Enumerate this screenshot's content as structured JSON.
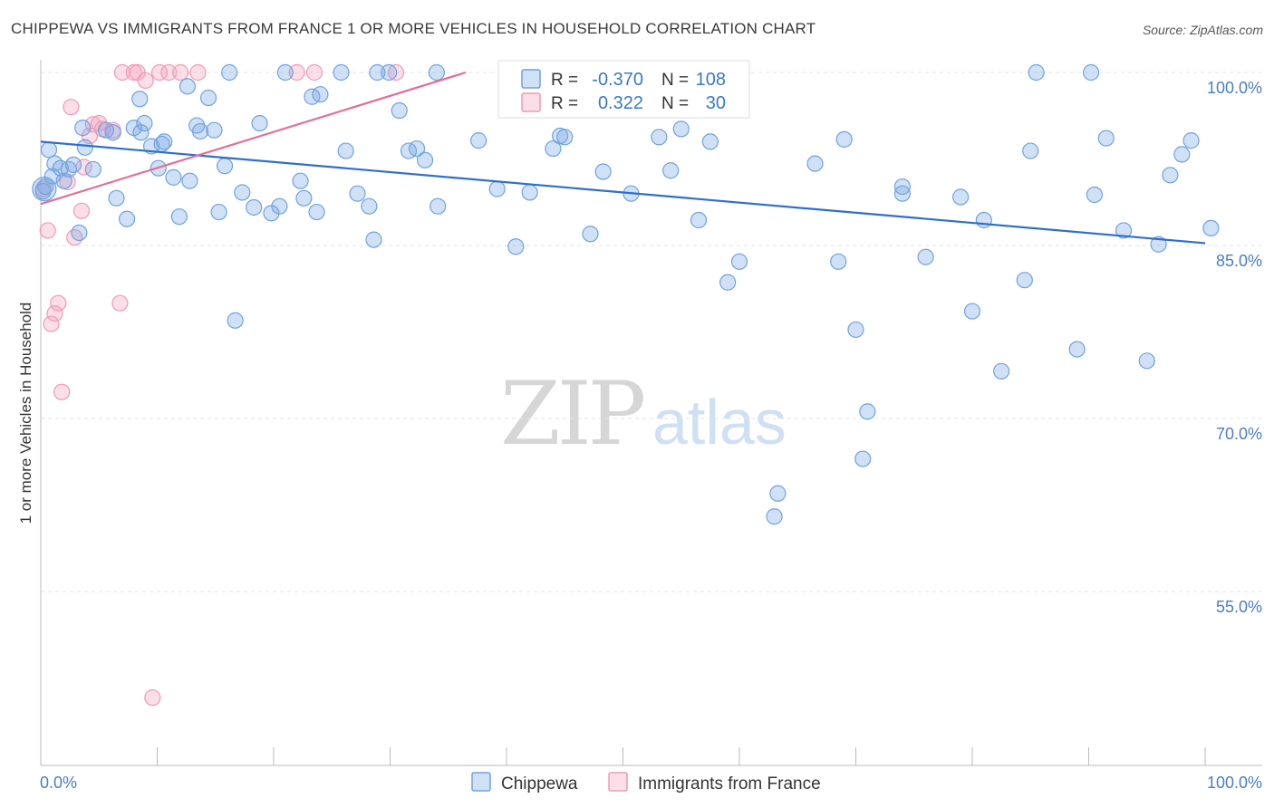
{
  "header": {
    "title": "CHIPPEWA VS IMMIGRANTS FROM FRANCE 1 OR MORE VEHICLES IN HOUSEHOLD CORRELATION CHART",
    "source": "Source: ZipAtlas.com"
  },
  "colors": {
    "blue": "#6fa3e0",
    "blue_fill": "rgba(120,165,225,0.35)",
    "blue_line": "#2f6fcb",
    "pink": "#ef9ab5",
    "pink_fill": "rgba(245,160,190,0.35)",
    "pink_line": "#e0709a",
    "value_text": "#3a78c9"
  },
  "watermark": {
    "zip": "ZIP",
    "atlas": "atlas"
  },
  "legend": {
    "r_label": "R =",
    "n_label": "N =",
    "rows": [
      {
        "series": "Chippewa",
        "r": "-0.370",
        "n": "108"
      },
      {
        "series": "Immigrants from France",
        "r": "0.322",
        "n": "30"
      }
    ]
  },
  "bottom_legend": [
    "Chippewa",
    "Immigrants from France"
  ],
  "chart_data": {
    "type": "scatter",
    "title": "CHIPPEWA VS IMMIGRANTS FROM FRANCE 1 OR MORE VEHICLES IN HOUSEHOLD CORRELATION CHART",
    "xlabel": "",
    "ylabel": "1 or more Vehicles in Household",
    "xlim": [
      0,
      100
    ],
    "ylim": [
      40,
      101
    ],
    "x_tick_labels": [
      "0.0%",
      "100.0%"
    ],
    "y_ticks": [
      55,
      70,
      85,
      100
    ],
    "y_tick_labels": [
      "55.0%",
      "70.0%",
      "85.0%",
      "100.0%"
    ],
    "grid": true,
    "series": [
      {
        "name": "Chippewa",
        "r": -0.37,
        "n": 108,
        "trend": {
          "x": [
            0,
            100
          ],
          "y": [
            94.0,
            85.2
          ]
        },
        "points": [
          [
            0.4,
            90.1
          ],
          [
            0.7,
            93.3
          ],
          [
            1.2,
            92.1
          ],
          [
            1.7,
            91.7
          ],
          [
            2.4,
            91.6
          ],
          [
            2.8,
            92.0
          ],
          [
            3.3,
            86.1
          ],
          [
            3.8,
            93.5
          ],
          [
            4.5,
            91.6
          ],
          [
            5.6,
            95.0
          ],
          [
            6.2,
            94.8
          ],
          [
            6.5,
            89.1
          ],
          [
            7.4,
            87.3
          ],
          [
            8.0,
            95.2
          ],
          [
            8.6,
            94.8
          ],
          [
            8.5,
            97.7
          ],
          [
            8.9,
            95.6
          ],
          [
            9.5,
            93.6
          ],
          [
            10.1,
            91.7
          ],
          [
            10.6,
            94.0
          ],
          [
            10.4,
            93.8
          ],
          [
            11.4,
            90.9
          ],
          [
            11.9,
            87.5
          ],
          [
            12.6,
            98.8
          ],
          [
            12.8,
            90.6
          ],
          [
            13.4,
            95.4
          ],
          [
            13.7,
            94.9
          ],
          [
            14.4,
            97.8
          ],
          [
            14.9,
            95.0
          ],
          [
            15.3,
            87.9
          ],
          [
            15.8,
            91.9
          ],
          [
            16.2,
            100.0
          ],
          [
            16.7,
            78.5
          ],
          [
            17.3,
            89.6
          ],
          [
            18.3,
            88.3
          ],
          [
            18.8,
            95.6
          ],
          [
            19.8,
            87.8
          ],
          [
            20.5,
            88.4
          ],
          [
            21.0,
            100.0
          ],
          [
            22.3,
            90.6
          ],
          [
            22.6,
            89.1
          ],
          [
            23.3,
            97.9
          ],
          [
            23.7,
            87.9
          ],
          [
            24.0,
            98.1
          ],
          [
            25.8,
            100.0
          ],
          [
            27.2,
            89.5
          ],
          [
            28.2,
            88.4
          ],
          [
            28.6,
            85.5
          ],
          [
            28.9,
            100.0
          ],
          [
            29.9,
            100.0
          ],
          [
            30.8,
            96.7
          ],
          [
            31.6,
            93.2
          ],
          [
            32.3,
            93.4
          ],
          [
            33.0,
            92.4
          ],
          [
            34.0,
            100.0
          ],
          [
            34.1,
            88.4
          ],
          [
            37.6,
            94.1
          ],
          [
            39.2,
            89.9
          ],
          [
            40.8,
            84.9
          ],
          [
            42.0,
            89.6
          ],
          [
            44.0,
            93.4
          ],
          [
            44.6,
            94.5
          ],
          [
            45.0,
            94.4
          ],
          [
            45.7,
            100.0
          ],
          [
            47.2,
            86.0
          ],
          [
            48.3,
            91.4
          ],
          [
            50.7,
            89.5
          ],
          [
            53.1,
            94.4
          ],
          [
            54.1,
            91.5
          ],
          [
            55.0,
            95.1
          ],
          [
            56.5,
            87.2
          ],
          [
            57.5,
            94.0
          ],
          [
            59.0,
            81.8
          ],
          [
            60.0,
            83.6
          ],
          [
            63.0,
            61.5
          ],
          [
            63.3,
            63.5
          ],
          [
            66.5,
            92.1
          ],
          [
            68.5,
            83.6
          ],
          [
            69.0,
            94.2
          ],
          [
            70.0,
            77.7
          ],
          [
            71.0,
            70.6
          ],
          [
            74.0,
            89.5
          ],
          [
            74.0,
            90.1
          ],
          [
            76.0,
            84.0
          ],
          [
            79.0,
            89.2
          ],
          [
            80.0,
            79.3
          ],
          [
            81.0,
            87.2
          ],
          [
            82.5,
            74.1
          ],
          [
            84.5,
            82.0
          ],
          [
            85.0,
            93.2
          ],
          [
            85.5,
            100.0
          ],
          [
            89.0,
            76.0
          ],
          [
            90.5,
            89.4
          ],
          [
            91.5,
            94.3
          ],
          [
            93.0,
            86.3
          ],
          [
            95.0,
            75.0
          ],
          [
            96.0,
            85.1
          ],
          [
            97.0,
            91.1
          ],
          [
            98.0,
            92.9
          ],
          [
            98.8,
            94.1
          ],
          [
            100.5,
            86.5
          ],
          [
            0.2,
            89.7
          ],
          [
            1.0,
            91.0
          ],
          [
            2.0,
            90.6
          ],
          [
            3.6,
            95.2
          ],
          [
            26.2,
            93.2
          ],
          [
            70.6,
            66.5
          ],
          [
            90.2,
            100.0
          ]
        ]
      },
      {
        "name": "Immigrants from France",
        "r": 0.322,
        "n": 30,
        "trend": {
          "x": [
            0,
            36.5
          ],
          "y": [
            88.6,
            100.0
          ]
        },
        "points": [
          [
            0.2,
            89.9
          ],
          [
            0.6,
            86.3
          ],
          [
            0.9,
            78.2
          ],
          [
            1.2,
            79.1
          ],
          [
            1.5,
            80.0
          ],
          [
            1.8,
            72.3
          ],
          [
            2.3,
            90.5
          ],
          [
            2.6,
            97.0
          ],
          [
            2.9,
            85.7
          ],
          [
            3.5,
            88.0
          ],
          [
            3.7,
            91.8
          ],
          [
            4.2,
            94.5
          ],
          [
            4.5,
            95.5
          ],
          [
            5.0,
            95.6
          ],
          [
            5.3,
            95.1
          ],
          [
            6.2,
            95.0
          ],
          [
            6.8,
            80.0
          ],
          [
            7.0,
            100.0
          ],
          [
            8.0,
            100.0
          ],
          [
            8.3,
            100.0
          ],
          [
            9.0,
            99.3
          ],
          [
            9.6,
            45.8
          ],
          [
            10.2,
            100.0
          ],
          [
            11.0,
            100.0
          ],
          [
            12.0,
            100.0
          ],
          [
            13.5,
            100.0
          ],
          [
            22.0,
            100.0
          ],
          [
            23.5,
            100.0
          ],
          [
            60.2,
            100.0
          ],
          [
            30.5,
            100.0
          ]
        ]
      }
    ]
  }
}
